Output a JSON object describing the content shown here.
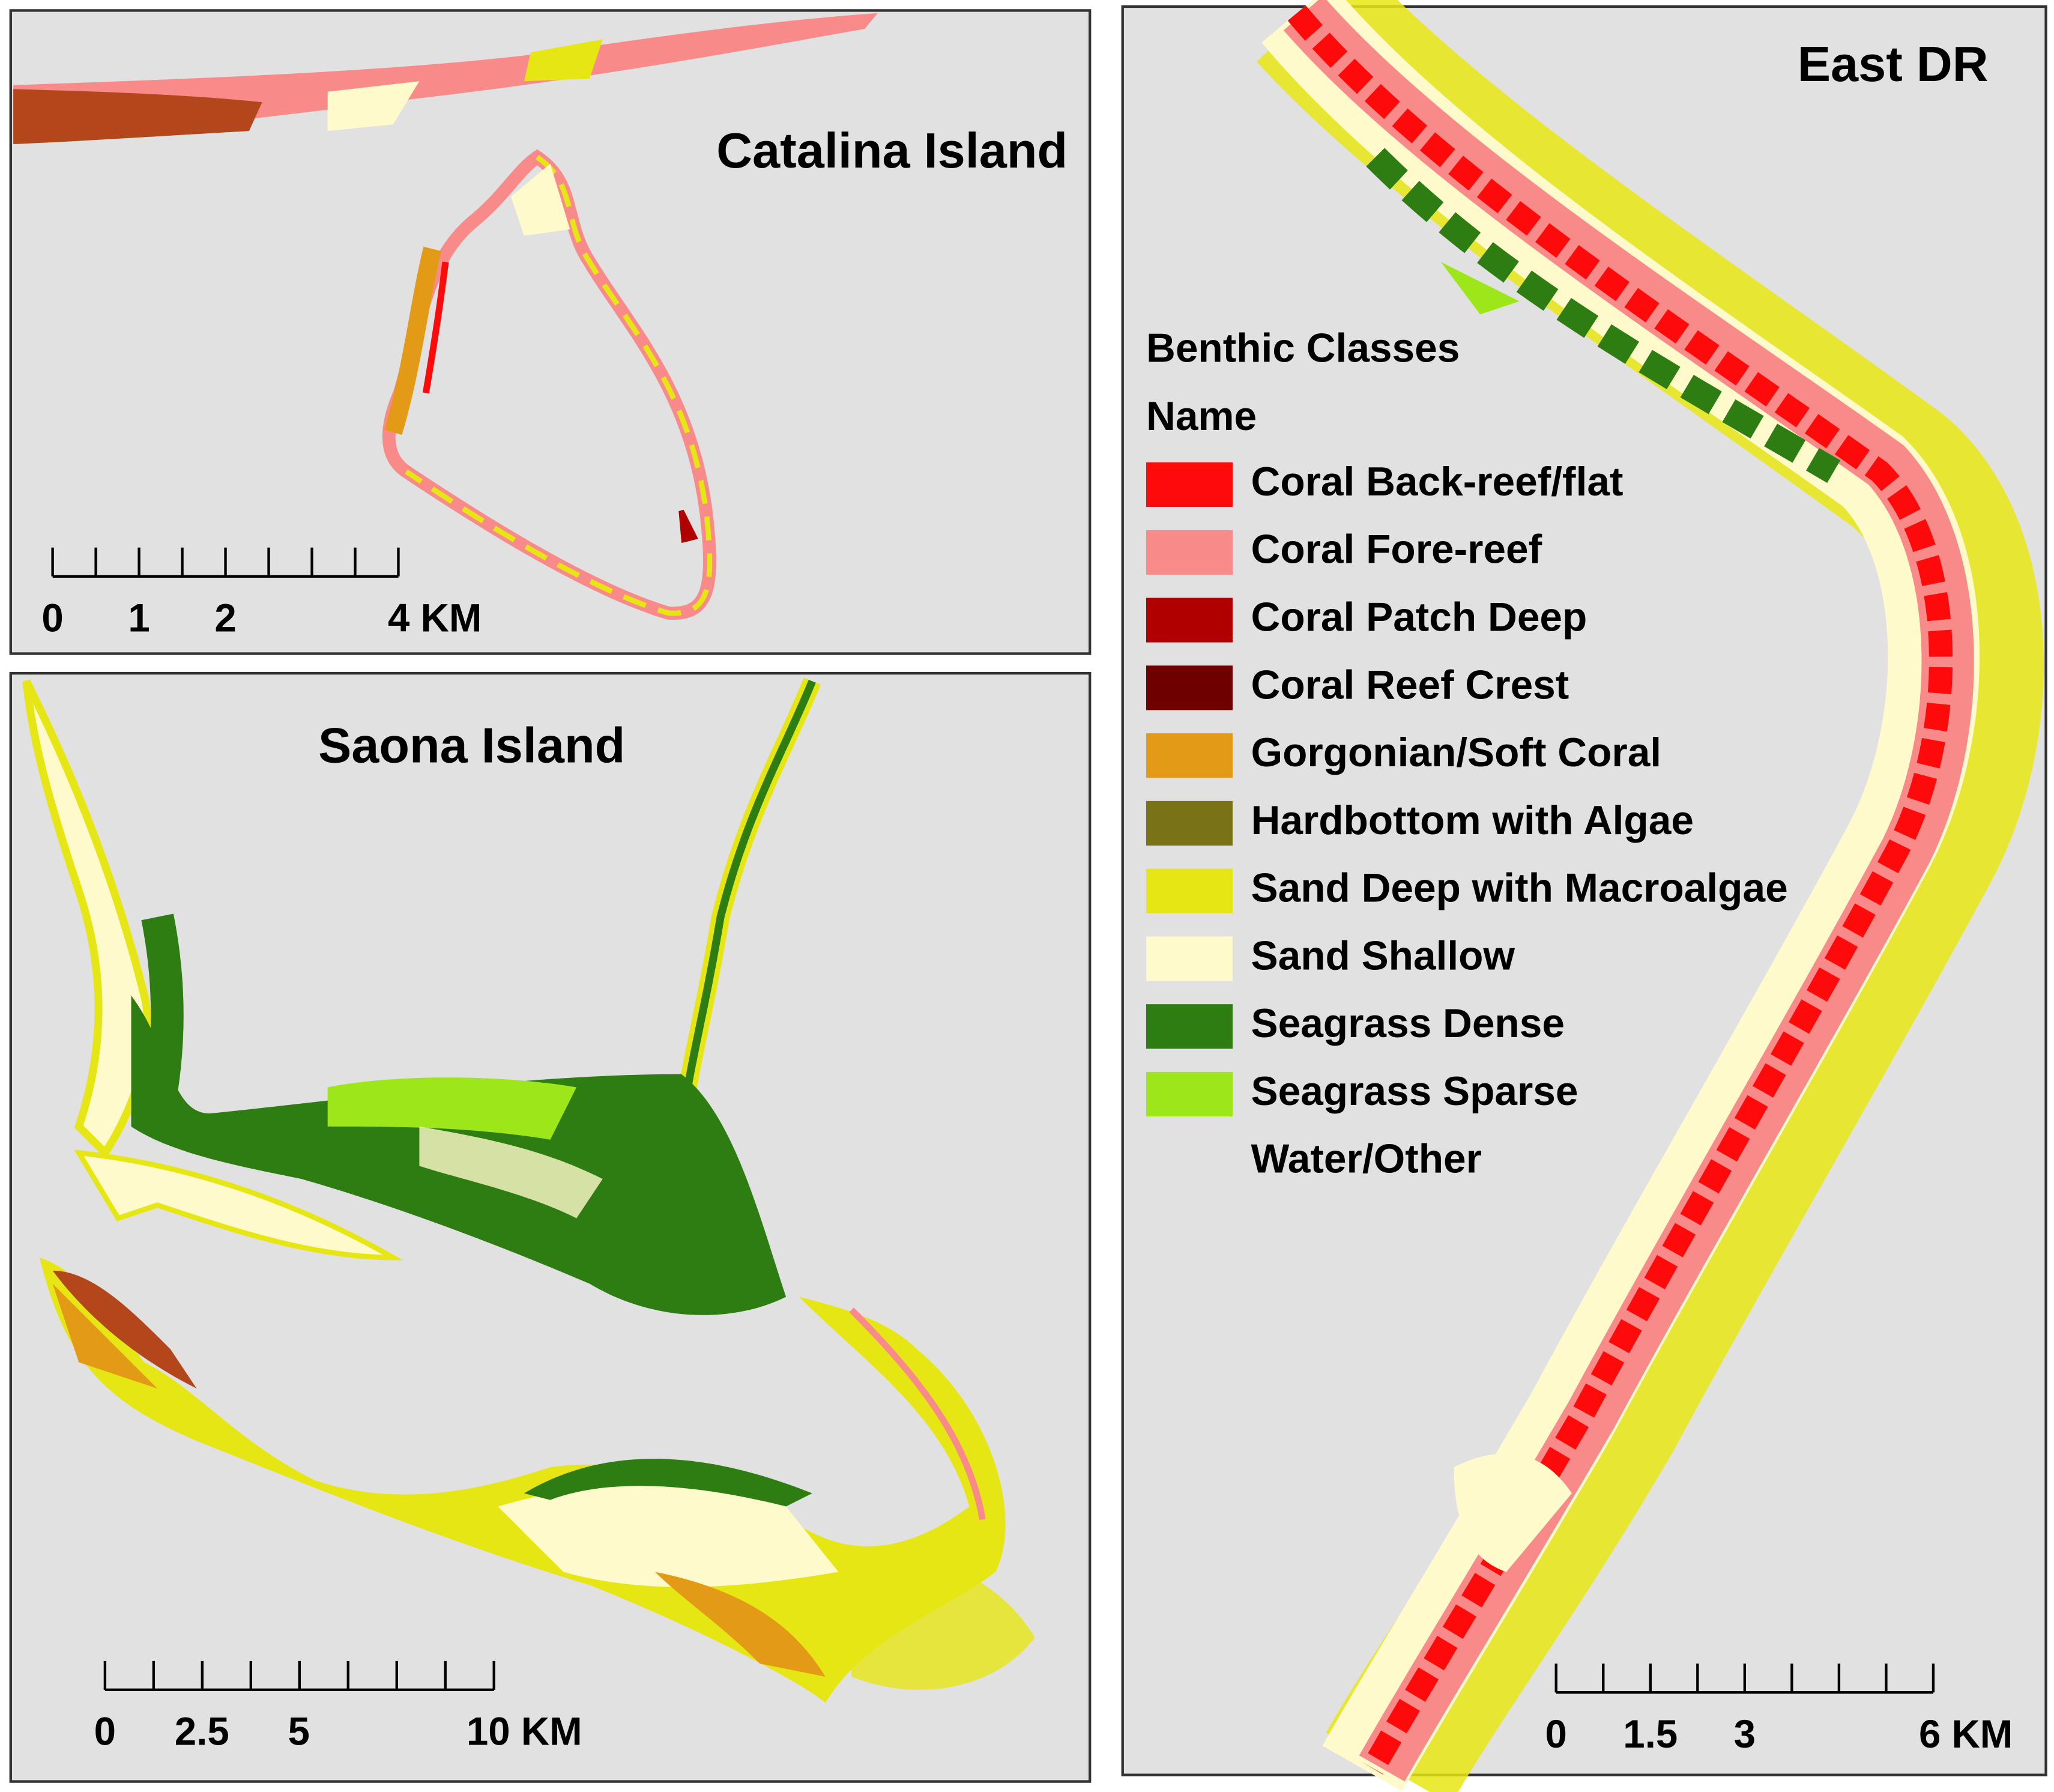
{
  "panels": [
    {
      "title": "Catalina Island",
      "scale_bar": {
        "labels": [
          "0",
          "1",
          "2",
          "4 KM"
        ]
      }
    },
    {
      "title": "Saona Island",
      "scale_bar": {
        "labels": [
          "0",
          "2.5",
          "5",
          "10 KM"
        ]
      }
    },
    {
      "title": "East DR",
      "scale_bar": {
        "labels": [
          "0",
          "1.5",
          "3",
          "6 KM"
        ]
      }
    }
  ],
  "legend": {
    "title": "Benthic Classes",
    "header": "Name",
    "items": [
      {
        "label": "Coral Back-reef/flat",
        "color": "#ff0a0a"
      },
      {
        "label": "Coral Fore-reef",
        "color": "#f98a8a"
      },
      {
        "label": "Coral Patch Deep",
        "color": "#b10000"
      },
      {
        "label": "Coral Reef Crest",
        "color": "#6e0000"
      },
      {
        "label": "Gorgonian/Soft Coral",
        "color": "#e39a16"
      },
      {
        "label": "Hardbottom with Algae",
        "color": "#7a7216"
      },
      {
        "label": "Sand Deep with Macroalgae",
        "color": "#e6e614"
      },
      {
        "label": "Sand Shallow",
        "color": "#fffacb"
      },
      {
        "label": "Seagrass Dense",
        "color": "#2e7d12"
      },
      {
        "label": "Seagrass Sparse",
        "color": "#9ce619"
      },
      {
        "label": "Water/Other",
        "color": "#e1e1e1"
      }
    ]
  }
}
